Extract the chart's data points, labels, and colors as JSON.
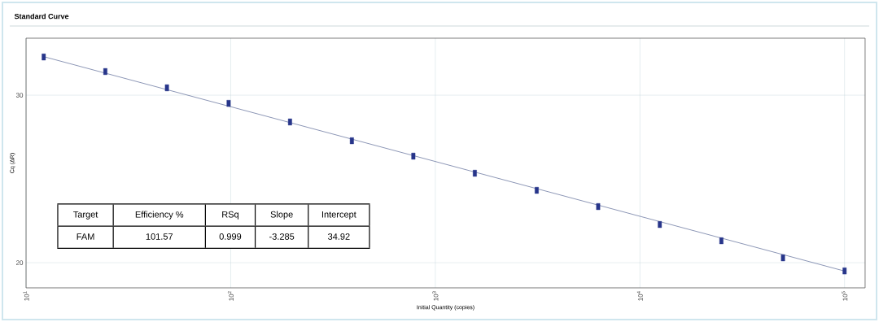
{
  "chart_data": {
    "type": "scatter",
    "title": "Standard Curve",
    "xlabel": "Initial Quantity (copies)",
    "ylabel": "Cq (ΔR)",
    "log": "x",
    "grid": true,
    "xlim": [
      10,
      126000
    ],
    "ylim": [
      18.5,
      33.4
    ],
    "xticks": [
      {
        "value": 10,
        "label": "10$^{1}$"
      },
      {
        "value": 100,
        "label": "10$^{2}$"
      },
      {
        "value": 1000,
        "label": "10$^{3}$"
      },
      {
        "value": 10000,
        "label": "10$^{4}$"
      },
      {
        "value": 100000,
        "label": "10$^{5}$"
      }
    ],
    "yticks": [
      20,
      30
    ],
    "series": [
      {
        "marker": "square",
        "color": "#27358a",
        "x": [
          12.2,
          24.4,
          48.8,
          97.7,
          195,
          391,
          781,
          1560,
          3130,
          6250,
          12500,
          25000,
          50000,
          100000
        ],
        "values": [
          32.28,
          31.41,
          30.44,
          29.51,
          28.4,
          27.28,
          26.36,
          25.34,
          24.32,
          23.35,
          22.28,
          21.31,
          20.29,
          19.51
        ]
      },
      {
        "type": "line",
        "color": "#5b6a96",
        "x": [
          12.2,
          100000
        ],
        "values": [
          32.3,
          19.5
        ]
      }
    ],
    "annotations": [
      "Target",
      "Efficiency %",
      "RSq",
      "Slope",
      "Intercept",
      "FAM",
      "101.57",
      "0.999",
      "-3.285",
      "34.92"
    ]
  }
}
